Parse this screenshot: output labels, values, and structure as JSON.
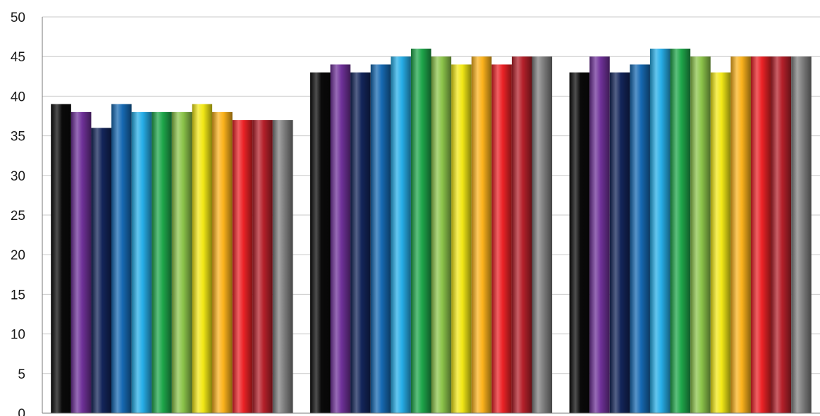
{
  "chart_data": {
    "type": "bar",
    "title": "",
    "xlabel": "",
    "ylabel": "",
    "ylim": [
      0,
      50
    ],
    "yticks": [
      0,
      5,
      10,
      15,
      20,
      25,
      30,
      35,
      40,
      45,
      50
    ],
    "grid": true,
    "legend": "none",
    "group_count": 3,
    "series": [
      {
        "color": "#0a0a0a",
        "values": [
          39,
          43,
          43
        ]
      },
      {
        "color": "#6f3199",
        "values": [
          38,
          44,
          45
        ]
      },
      {
        "color": "#13255a",
        "values": [
          36,
          43,
          43
        ]
      },
      {
        "color": "#1669b2",
        "values": [
          39,
          44,
          44
        ]
      },
      {
        "color": "#27aee8",
        "values": [
          38,
          45,
          46
        ]
      },
      {
        "color": "#1ea64a",
        "values": [
          38,
          46,
          46
        ]
      },
      {
        "color": "#8cc44a",
        "values": [
          38,
          45,
          45
        ]
      },
      {
        "color": "#f2e816",
        "values": [
          39,
          44,
          43
        ]
      },
      {
        "color": "#fbb21c",
        "values": [
          38,
          45,
          45
        ]
      },
      {
        "color": "#ec2226",
        "values": [
          37,
          44,
          45
        ]
      },
      {
        "color": "#b5202a",
        "values": [
          37,
          45,
          45
        ]
      },
      {
        "color": "#7f7f7f",
        "values": [
          37,
          45,
          45
        ]
      }
    ]
  }
}
